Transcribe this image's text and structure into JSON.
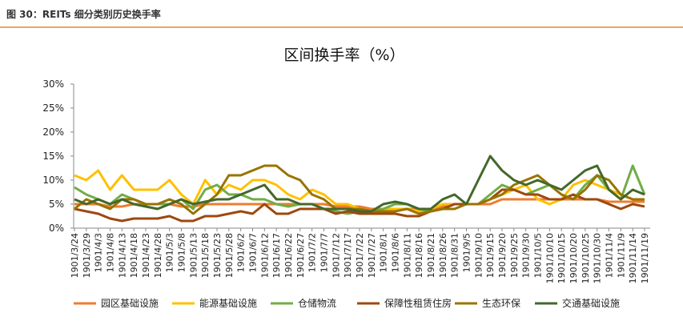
{
  "chart_data": {
    "type": "line",
    "header": "图 30：REITs 细分类别历史换手率",
    "title": "区间换手率（%）",
    "categories": [
      "1901/3/24",
      "1901/3/29",
      "1901/4/3",
      "1901/4/8",
      "1901/4/13",
      "1901/4/18",
      "1901/4/23",
      "1901/4/28",
      "1901/5/3",
      "1901/5/8",
      "1901/5/13",
      "1901/5/18",
      "1901/5/23",
      "1901/5/28",
      "1901/6/2",
      "1901/6/7",
      "1901/6/12",
      "1901/6/17",
      "1901/6/22",
      "1901/6/27",
      "1901/7/2",
      "1901/7/7",
      "1901/7/12",
      "1901/7/17",
      "1901/7/22",
      "1901/7/27",
      "1901/8/1",
      "1901/8/6",
      "1901/8/11",
      "1901/8/16",
      "1901/8/21",
      "1901/8/26",
      "1901/8/31",
      "1901/9/5",
      "1901/9/10",
      "1901/9/15",
      "1901/9/20",
      "1901/9/25",
      "1901/9/30",
      "1901/10/5",
      "1901/10/10",
      "1901/10/15",
      "1901/10/20",
      "1901/10/25",
      "1901/10/30",
      "1901/11/4",
      "1901/11/9",
      "1901/11/14",
      "1901/11/19"
    ],
    "series": [
      {
        "name": "园区基础设施",
        "color": "#ED7D31",
        "values": [
          5,
          5,
          5,
          4.5,
          4.5,
          5,
          5,
          5,
          5,
          4.5,
          4.5,
          5,
          5,
          5,
          5,
          5,
          5,
          5,
          5,
          5,
          5,
          5,
          4.5,
          4.5,
          4.5,
          4,
          4,
          4,
          4,
          4,
          4,
          4.5,
          5,
          5,
          5,
          5,
          6,
          6,
          6,
          6,
          6,
          6,
          6,
          6,
          6,
          5.5,
          5.5,
          5.5,
          5.5
        ]
      },
      {
        "name": "能源基础设施",
        "color": "#FFC000",
        "values": [
          11,
          10,
          12,
          8,
          11,
          8,
          8,
          8,
          10,
          7,
          5,
          10,
          7,
          9,
          8,
          10,
          10,
          9,
          7,
          6,
          8,
          7,
          5,
          5,
          4,
          3.5,
          4,
          4,
          4,
          3.5,
          4,
          5,
          5,
          5,
          5,
          6,
          7,
          8,
          9,
          6,
          5,
          6,
          9,
          10,
          9,
          8,
          7,
          6,
          6
        ]
      },
      {
        "name": "仓储物流",
        "color": "#70AD47",
        "values": [
          8.5,
          7,
          6,
          5,
          7,
          6,
          5,
          5,
          5,
          6,
          4,
          8,
          9,
          7,
          7,
          6,
          6,
          5,
          4.5,
          5,
          5,
          4,
          3.5,
          3,
          3.5,
          3.5,
          4,
          5,
          5,
          4,
          3.5,
          4,
          5,
          5,
          5,
          7,
          9,
          8,
          7,
          8,
          9,
          7,
          6,
          9,
          11,
          8,
          6,
          13,
          7
        ]
      },
      {
        "name": "保障性租赁住房",
        "color": "#9E480E",
        "values": [
          4,
          3.5,
          3,
          2,
          1.5,
          2,
          2,
          2,
          2.5,
          1.5,
          1.5,
          2.5,
          2.5,
          3,
          3.5,
          3,
          5,
          3,
          3,
          4,
          4,
          4,
          3,
          3.5,
          3,
          3,
          3,
          3,
          2.5,
          2.5,
          3.5,
          4,
          5,
          5,
          5,
          6,
          8,
          8,
          7,
          7,
          6,
          6,
          7,
          6,
          6,
          5,
          4,
          5,
          4.5
        ]
      },
      {
        "name": "生态环保",
        "color": "#997300",
        "values": [
          4,
          6,
          5,
          4,
          6,
          6,
          5,
          5,
          6,
          5,
          3,
          5,
          7,
          11,
          11,
          12,
          13,
          13,
          11,
          10,
          7,
          6,
          4,
          4,
          4,
          3.5,
          3.5,
          3.5,
          4,
          3,
          3.5,
          4,
          4,
          5,
          5,
          6,
          7,
          9,
          10,
          11,
          9,
          7,
          6,
          8,
          11,
          10,
          7,
          6,
          6
        ]
      },
      {
        "name": "交通基础设施",
        "color": "#43682B",
        "values": [
          6,
          5,
          6,
          5,
          6,
          5,
          4.5,
          4,
          5,
          6,
          5,
          5.5,
          6,
          6,
          7,
          8,
          9,
          6,
          6,
          5,
          5,
          4,
          4,
          4,
          3.5,
          3.5,
          5,
          5.5,
          5,
          4,
          4,
          6,
          7,
          5,
          10,
          15,
          12,
          10,
          9,
          10,
          9,
          8,
          10,
          12,
          13,
          8,
          6,
          8,
          7
        ]
      }
    ],
    "ylim": [
      0,
      30
    ],
    "yticks": [
      {
        "value": 0,
        "label": "0%"
      },
      {
        "value": 5,
        "label": "5%"
      },
      {
        "value": 10,
        "label": "10%"
      },
      {
        "value": 15,
        "label": "15%"
      },
      {
        "value": 20,
        "label": "20%"
      },
      {
        "value": 25,
        "label": "25%"
      },
      {
        "value": 30,
        "label": "30%"
      }
    ]
  }
}
